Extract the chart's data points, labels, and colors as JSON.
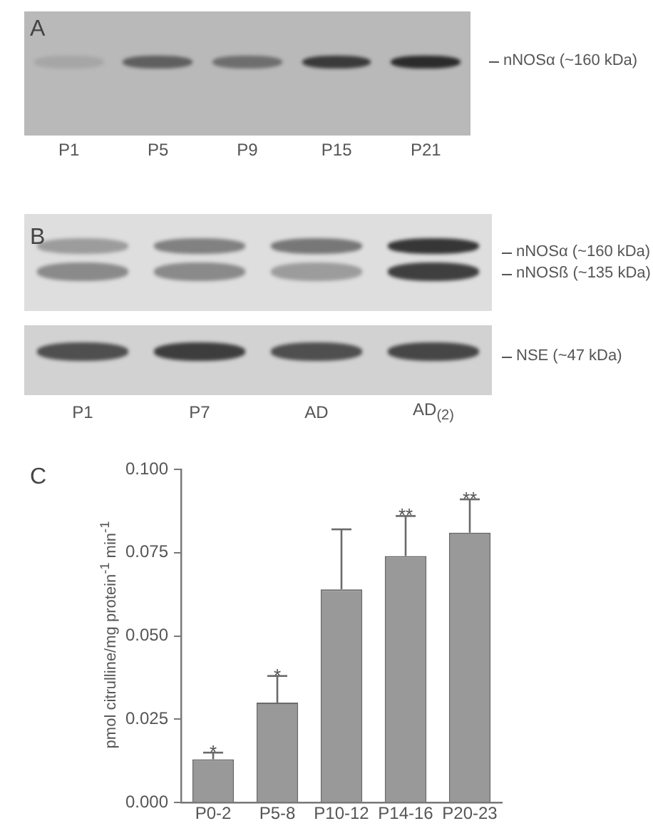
{
  "chart_data": [
    {
      "type": "other",
      "title": "A",
      "categories": [
        "P1",
        "P5",
        "P9",
        "P15",
        "P21"
      ],
      "annotations": [
        "nNOSα (~160 kDa)"
      ]
    },
    {
      "type": "other",
      "title": "B",
      "categories": [
        "P1",
        "P7",
        "AD",
        "AD$_{(2)}$"
      ],
      "annotations": [
        "nNOSα (~160 kDa)",
        "nNOSß (~135 kDa)",
        "NSE (~47 kDa)"
      ]
    },
    {
      "type": "bar",
      "title": "C",
      "ylabel": "pmol citrulline/mg protein$^{-1}$ min$^{-1}$",
      "categories": [
        "P0-2",
        "P5-8",
        "P10-12",
        "P14-16",
        "P20-23"
      ],
      "values": [
        0.013,
        0.03,
        0.064,
        0.074,
        0.081
      ],
      "color": "#999999",
      "errors": [
        [
          0.013,
          0.015
        ],
        [
          0.03,
          0.038
        ],
        [
          0.064,
          0.082
        ],
        [
          0.074,
          0.086
        ],
        [
          0.081,
          0.091
        ]
      ],
      "ylim": [
        0,
        0.1
      ],
      "yticks": [
        {
          "value": 0,
          "label": "0.000"
        },
        0.025,
        {
          "value": 0.05,
          "label": "0.050"
        },
        0.075,
        {
          "value": 0.1,
          "label": "0.100"
        }
      ],
      "grid": false,
      "legend": false,
      "annotations": [
        "*",
        "*",
        "**",
        "**"
      ]
    }
  ]
}
